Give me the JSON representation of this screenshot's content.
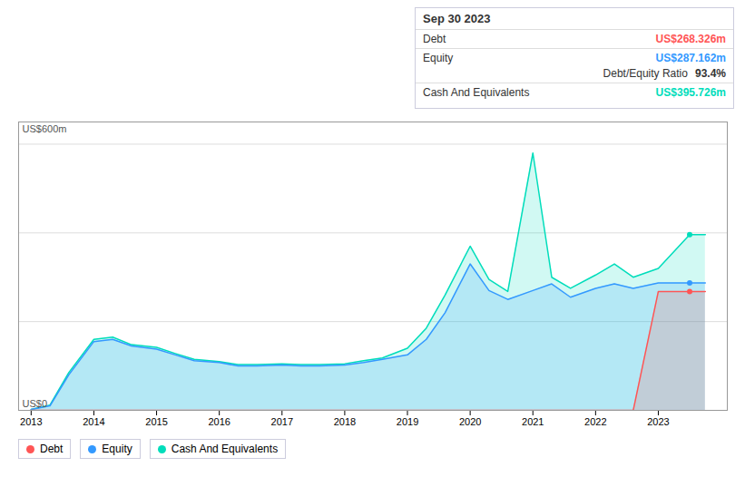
{
  "chart_data": {
    "type": "area",
    "x": [
      2013.0,
      2013.3,
      2013.6,
      2014.0,
      2014.3,
      2014.6,
      2015.0,
      2015.3,
      2015.6,
      2016.0,
      2016.3,
      2016.6,
      2017.0,
      2017.3,
      2017.6,
      2018.0,
      2018.3,
      2018.6,
      2019.0,
      2019.3,
      2019.6,
      2020.0,
      2020.3,
      2020.6,
      2021.0,
      2021.3,
      2021.6,
      2022.0,
      2022.3,
      2022.6,
      2023.0,
      2023.5,
      2023.75
    ],
    "series": [
      {
        "name": "Debt",
        "color": "#ff5555",
        "values": [
          0,
          0,
          0,
          0,
          0,
          0,
          0,
          0,
          0,
          0,
          0,
          0,
          0,
          0,
          0,
          0,
          0,
          0,
          0,
          0,
          0,
          0,
          0,
          0,
          0,
          0,
          0,
          0,
          0,
          0,
          268,
          268,
          268
        ]
      },
      {
        "name": "Equity",
        "color": "#3399ff",
        "values": [
          2,
          10,
          80,
          155,
          160,
          145,
          138,
          125,
          112,
          108,
          100,
          100,
          102,
          100,
          100,
          102,
          108,
          115,
          125,
          160,
          220,
          330,
          270,
          250,
          270,
          285,
          255,
          275,
          285,
          275,
          287,
          287,
          287
        ]
      },
      {
        "name": "Cash And Equivalents",
        "color": "#00ddbb",
        "values": [
          2,
          12,
          85,
          160,
          165,
          148,
          142,
          128,
          115,
          110,
          103,
          103,
          105,
          103,
          103,
          105,
          112,
          118,
          140,
          185,
          260,
          370,
          295,
          268,
          580,
          300,
          275,
          305,
          330,
          300,
          320,
          396,
          396
        ]
      }
    ],
    "xlim": [
      2012.8,
      2024.1
    ],
    "xticks": [
      2013,
      2014,
      2015,
      2016,
      2017,
      2018,
      2019,
      2020,
      2021,
      2022,
      2023
    ],
    "ylim": [
      0,
      650
    ],
    "yticks": [
      200,
      400,
      600
    ],
    "grid": true,
    "tick_labels": "x",
    "legend": "bottom-left",
    "annotations": [
      "US$600m",
      "US$0"
    ],
    "highlight_x": 2023.5,
    "info_box": {
      "title": "Sep 30 2023",
      "rows": [
        {
          "label": "Debt",
          "value": "US$268.326m"
        },
        {
          "label": "Equity",
          "value": "US$287.162m",
          "note": "Debt/Equity Ratio",
          "note_value": "93.4%"
        },
        {
          "label": "Cash And Equivalents",
          "value": "US$395.726m"
        }
      ]
    }
  }
}
